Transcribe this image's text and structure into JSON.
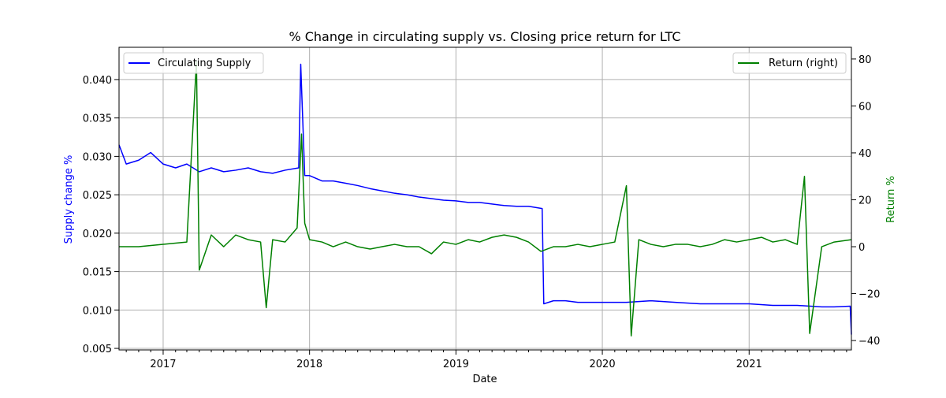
{
  "chart_data": {
    "type": "line",
    "title": "% Change in circulating supply vs. Closing price return for LTC",
    "xlabel": "Date",
    "ylabel_left": "Supply change %",
    "ylabel_right": "Return %",
    "x_range": [
      "2016-09-13",
      "2021-09-13"
    ],
    "x_ticks": [
      "2017",
      "2018",
      "2019",
      "2020",
      "2021"
    ],
    "ylim_left": [
      0.0048,
      0.0442
    ],
    "yticks_left": [
      "0.005",
      "0.010",
      "0.015",
      "0.020",
      "0.025",
      "0.030",
      "0.035",
      "0.040"
    ],
    "ylim_right": [
      -44,
      85
    ],
    "yticks_right": [
      "−40",
      "−20",
      "0",
      "20",
      "40",
      "60",
      "80"
    ],
    "grid": true,
    "legend_left": "upper-left",
    "legend_right": "upper-right",
    "series": [
      {
        "name": "Circulating Supply",
        "axis": "left",
        "color": "#0000ff",
        "points": [
          [
            "2016-09-13",
            0.0315
          ],
          [
            "2016-10-01",
            0.029
          ],
          [
            "2016-11-01",
            0.0295
          ],
          [
            "2016-12-01",
            0.0305
          ],
          [
            "2017-01-01",
            0.029
          ],
          [
            "2017-02-01",
            0.0285
          ],
          [
            "2017-03-01",
            0.029
          ],
          [
            "2017-04-01",
            0.028
          ],
          [
            "2017-05-01",
            0.0285
          ],
          [
            "2017-06-01",
            0.028
          ],
          [
            "2017-07-01",
            0.0282
          ],
          [
            "2017-08-01",
            0.0285
          ],
          [
            "2017-09-01",
            0.028
          ],
          [
            "2017-10-01",
            0.0278
          ],
          [
            "2017-11-01",
            0.0282
          ],
          [
            "2017-12-05",
            0.0285
          ],
          [
            "2017-12-10",
            0.042
          ],
          [
            "2017-12-20",
            0.0275
          ],
          [
            "2018-01-01",
            0.0275
          ],
          [
            "2018-02-01",
            0.0268
          ],
          [
            "2018-03-01",
            0.0268
          ],
          [
            "2018-04-01",
            0.0265
          ],
          [
            "2018-05-01",
            0.0262
          ],
          [
            "2018-06-01",
            0.0258
          ],
          [
            "2018-07-01",
            0.0255
          ],
          [
            "2018-08-01",
            0.0252
          ],
          [
            "2018-09-01",
            0.025
          ],
          [
            "2018-10-01",
            0.0247
          ],
          [
            "2018-11-01",
            0.0245
          ],
          [
            "2018-12-01",
            0.0243
          ],
          [
            "2019-01-01",
            0.0242
          ],
          [
            "2019-02-01",
            0.024
          ],
          [
            "2019-03-01",
            0.024
          ],
          [
            "2019-04-01",
            0.0238
          ],
          [
            "2019-05-01",
            0.0236
          ],
          [
            "2019-06-01",
            0.0235
          ],
          [
            "2019-07-01",
            0.0235
          ],
          [
            "2019-08-04",
            0.0232
          ],
          [
            "2019-08-08",
            0.0108
          ],
          [
            "2019-09-01",
            0.0112
          ],
          [
            "2019-10-01",
            0.0112
          ],
          [
            "2019-11-01",
            0.011
          ],
          [
            "2019-12-01",
            0.011
          ],
          [
            "2020-01-01",
            0.011
          ],
          [
            "2020-03-01",
            0.011
          ],
          [
            "2020-05-01",
            0.0112
          ],
          [
            "2020-07-01",
            0.011
          ],
          [
            "2020-09-01",
            0.0108
          ],
          [
            "2020-11-01",
            0.0108
          ],
          [
            "2021-01-01",
            0.0108
          ],
          [
            "2021-03-01",
            0.0106
          ],
          [
            "2021-05-01",
            0.0106
          ],
          [
            "2021-07-01",
            0.0104
          ],
          [
            "2021-08-01",
            0.0104
          ],
          [
            "2021-09-10",
            0.0105
          ],
          [
            "2021-09-13",
            0.0068
          ]
        ]
      },
      {
        "name": "Return (right)",
        "axis": "right",
        "color": "#008000",
        "points": [
          [
            "2016-09-13",
            0
          ],
          [
            "2016-11-01",
            0
          ],
          [
            "2017-01-01",
            1
          ],
          [
            "2017-03-01",
            2
          ],
          [
            "2017-03-25",
            79
          ],
          [
            "2017-04-01",
            -10
          ],
          [
            "2017-05-01",
            5
          ],
          [
            "2017-06-01",
            0
          ],
          [
            "2017-07-01",
            5
          ],
          [
            "2017-08-01",
            3
          ],
          [
            "2017-09-01",
            2
          ],
          [
            "2017-09-15",
            -26
          ],
          [
            "2017-10-01",
            3
          ],
          [
            "2017-11-01",
            2
          ],
          [
            "2017-12-01",
            8
          ],
          [
            "2017-12-12",
            48
          ],
          [
            "2017-12-20",
            10
          ],
          [
            "2018-01-01",
            3
          ],
          [
            "2018-02-01",
            2
          ],
          [
            "2018-03-01",
            0
          ],
          [
            "2018-04-01",
            2
          ],
          [
            "2018-05-01",
            0
          ],
          [
            "2018-06-01",
            -1
          ],
          [
            "2018-07-01",
            0
          ],
          [
            "2018-08-01",
            1
          ],
          [
            "2018-09-01",
            0
          ],
          [
            "2018-10-01",
            0
          ],
          [
            "2018-11-01",
            -3
          ],
          [
            "2018-12-01",
            2
          ],
          [
            "2019-01-01",
            1
          ],
          [
            "2019-02-01",
            3
          ],
          [
            "2019-03-01",
            2
          ],
          [
            "2019-04-01",
            4
          ],
          [
            "2019-05-01",
            5
          ],
          [
            "2019-06-01",
            4
          ],
          [
            "2019-07-01",
            2
          ],
          [
            "2019-08-01",
            -2
          ],
          [
            "2019-09-01",
            0
          ],
          [
            "2019-10-01",
            0
          ],
          [
            "2019-11-01",
            1
          ],
          [
            "2019-12-01",
            0
          ],
          [
            "2020-01-01",
            1
          ],
          [
            "2020-02-01",
            2
          ],
          [
            "2020-03-01",
            26
          ],
          [
            "2020-03-13",
            -38
          ],
          [
            "2020-04-01",
            3
          ],
          [
            "2020-05-01",
            1
          ],
          [
            "2020-06-01",
            0
          ],
          [
            "2020-07-01",
            1
          ],
          [
            "2020-08-01",
            1
          ],
          [
            "2020-09-01",
            0
          ],
          [
            "2020-10-01",
            1
          ],
          [
            "2020-11-01",
            3
          ],
          [
            "2020-12-01",
            2
          ],
          [
            "2021-01-01",
            3
          ],
          [
            "2021-02-01",
            4
          ],
          [
            "2021-03-01",
            2
          ],
          [
            "2021-04-01",
            3
          ],
          [
            "2021-05-01",
            1
          ],
          [
            "2021-05-19",
            30
          ],
          [
            "2021-06-01",
            -37
          ],
          [
            "2021-07-01",
            0
          ],
          [
            "2021-08-01",
            2
          ],
          [
            "2021-09-13",
            3
          ]
        ]
      }
    ]
  }
}
